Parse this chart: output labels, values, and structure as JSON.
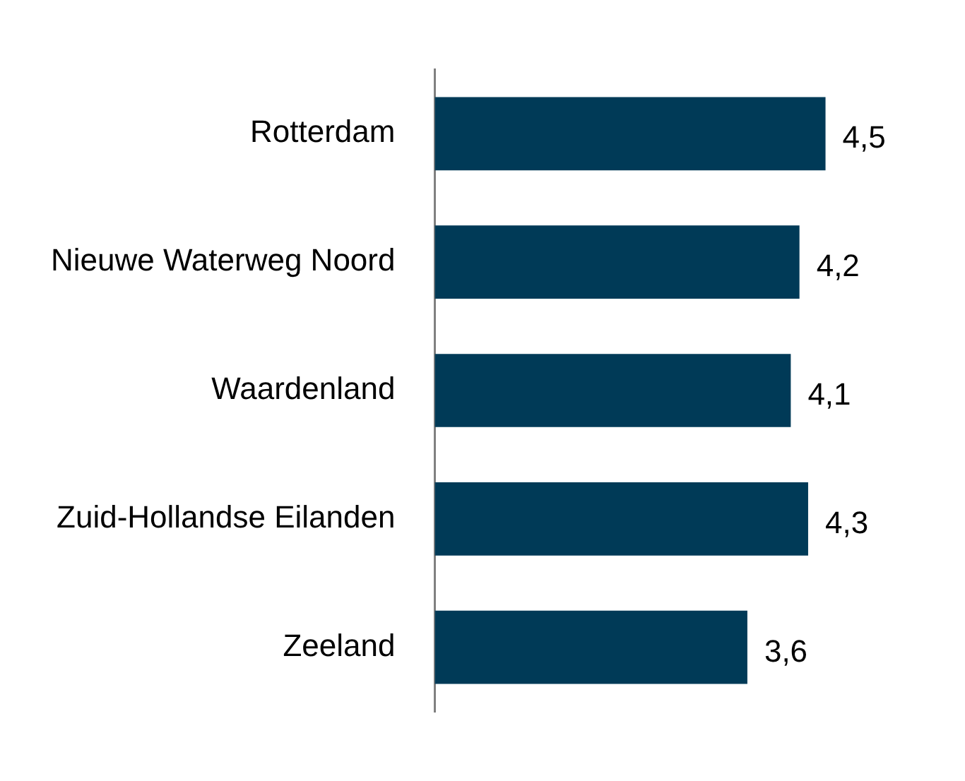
{
  "chart_data": {
    "type": "bar",
    "orientation": "horizontal",
    "categories": [
      "Rotterdam",
      "Nieuwe Waterweg Noord",
      "Waardenland",
      "Zuid-Hollandse Eilanden",
      "Zeeland"
    ],
    "values": [
      4.5,
      4.2,
      4.1,
      4.3,
      3.6
    ],
    "value_labels": [
      "4,5",
      "4,2",
      "4,1",
      "4,3",
      "3,6"
    ],
    "color": "#003a57",
    "grid": false,
    "legend": false
  }
}
